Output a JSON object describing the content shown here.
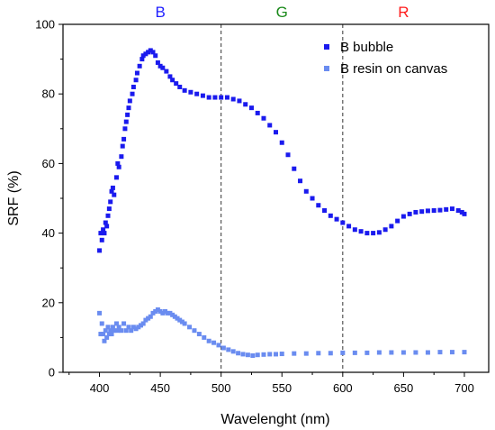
{
  "chart_data": {
    "type": "scatter",
    "xlabel": "Wavelenght (nm)",
    "ylabel": "SRF (%)",
    "xlim": [
      370,
      720
    ],
    "ylim": [
      0,
      100
    ],
    "xticks": [
      400,
      450,
      500,
      550,
      600,
      650,
      700
    ],
    "yticks": [
      0,
      20,
      40,
      60,
      80,
      100
    ],
    "grid": false,
    "legend": "top-right",
    "vlines": [
      500,
      600
    ],
    "bands": [
      {
        "label": "B",
        "x": 450,
        "color": "#1f1fff"
      },
      {
        "label": "G",
        "x": 550,
        "color": "#1a8a1a"
      },
      {
        "label": "R",
        "x": 650,
        "color": "#ff1a1a"
      }
    ],
    "series": [
      {
        "name": "B bubble",
        "color": "#1a1aee",
        "points": [
          [
            400,
            35
          ],
          [
            401,
            40
          ],
          [
            402,
            38
          ],
          [
            403,
            41
          ],
          [
            404,
            40
          ],
          [
            405,
            43
          ],
          [
            406,
            42
          ],
          [
            407,
            45
          ],
          [
            408,
            47
          ],
          [
            409,
            49
          ],
          [
            410,
            52
          ],
          [
            411,
            53
          ],
          [
            412,
            51
          ],
          [
            414,
            56
          ],
          [
            415,
            60
          ],
          [
            416,
            59
          ],
          [
            418,
            62
          ],
          [
            419,
            65
          ],
          [
            420,
            67
          ],
          [
            421,
            70
          ],
          [
            422,
            72
          ],
          [
            423,
            74
          ],
          [
            424,
            76
          ],
          [
            425,
            78
          ],
          [
            427,
            80
          ],
          [
            428,
            82
          ],
          [
            430,
            84
          ],
          [
            431,
            86
          ],
          [
            433,
            88
          ],
          [
            435,
            90
          ],
          [
            436,
            91
          ],
          [
            438,
            91.5
          ],
          [
            440,
            92
          ],
          [
            442,
            92.5
          ],
          [
            444,
            92
          ],
          [
            446,
            91
          ],
          [
            448,
            89
          ],
          [
            450,
            88
          ],
          [
            452,
            87.5
          ],
          [
            455,
            86.5
          ],
          [
            458,
            85
          ],
          [
            460,
            84
          ],
          [
            463,
            83
          ],
          [
            466,
            82
          ],
          [
            470,
            81
          ],
          [
            475,
            80.5
          ],
          [
            480,
            80
          ],
          [
            485,
            79.5
          ],
          [
            490,
            79
          ],
          [
            495,
            79
          ],
          [
            500,
            79
          ],
          [
            505,
            79
          ],
          [
            510,
            78.5
          ],
          [
            515,
            78
          ],
          [
            520,
            77
          ],
          [
            525,
            76
          ],
          [
            530,
            74.5
          ],
          [
            535,
            73
          ],
          [
            540,
            71
          ],
          [
            545,
            69
          ],
          [
            550,
            66
          ],
          [
            555,
            62.5
          ],
          [
            560,
            58.5
          ],
          [
            565,
            55
          ],
          [
            570,
            52
          ],
          [
            575,
            50
          ],
          [
            580,
            48
          ],
          [
            585,
            46.5
          ],
          [
            590,
            45
          ],
          [
            595,
            44
          ],
          [
            600,
            43
          ],
          [
            605,
            42
          ],
          [
            610,
            41
          ],
          [
            615,
            40.5
          ],
          [
            620,
            40
          ],
          [
            625,
            40
          ],
          [
            630,
            40.2
          ],
          [
            635,
            41
          ],
          [
            640,
            42
          ],
          [
            645,
            43.5
          ],
          [
            650,
            44.8
          ],
          [
            655,
            45.5
          ],
          [
            660,
            46
          ],
          [
            665,
            46.2
          ],
          [
            670,
            46.4
          ],
          [
            675,
            46.5
          ],
          [
            680,
            46.6
          ],
          [
            685,
            46.8
          ],
          [
            690,
            47
          ],
          [
            695,
            46.5
          ],
          [
            698,
            46
          ],
          [
            700,
            45.5
          ]
        ]
      },
      {
        "name": "B resin on canvas",
        "color": "#6a8cf0",
        "points": [
          [
            400,
            17
          ],
          [
            401,
            11
          ],
          [
            402,
            14
          ],
          [
            403,
            11
          ],
          [
            404,
            9
          ],
          [
            405,
            12
          ],
          [
            406,
            10
          ],
          [
            407,
            13
          ],
          [
            408,
            11
          ],
          [
            409,
            12
          ],
          [
            410,
            11
          ],
          [
            411,
            13
          ],
          [
            412,
            12
          ],
          [
            414,
            14
          ],
          [
            415,
            12
          ],
          [
            416,
            13
          ],
          [
            418,
            12
          ],
          [
            420,
            14
          ],
          [
            422,
            12
          ],
          [
            424,
            13
          ],
          [
            426,
            12
          ],
          [
            428,
            13
          ],
          [
            430,
            12.5
          ],
          [
            432,
            13
          ],
          [
            434,
            13.5
          ],
          [
            436,
            14
          ],
          [
            438,
            15
          ],
          [
            440,
            15.5
          ],
          [
            442,
            16
          ],
          [
            444,
            17
          ],
          [
            446,
            17.5
          ],
          [
            448,
            18
          ],
          [
            450,
            17.5
          ],
          [
            452,
            17
          ],
          [
            454,
            17.5
          ],
          [
            456,
            17
          ],
          [
            458,
            17
          ],
          [
            460,
            16.5
          ],
          [
            462,
            16
          ],
          [
            464,
            15.5
          ],
          [
            466,
            15
          ],
          [
            468,
            14.5
          ],
          [
            470,
            14
          ],
          [
            474,
            13
          ],
          [
            478,
            12
          ],
          [
            482,
            11
          ],
          [
            486,
            10
          ],
          [
            490,
            9
          ],
          [
            494,
            8.5
          ],
          [
            498,
            7.8
          ],
          [
            502,
            7
          ],
          [
            506,
            6.5
          ],
          [
            510,
            6
          ],
          [
            514,
            5.5
          ],
          [
            518,
            5.2
          ],
          [
            522,
            5
          ],
          [
            526,
            4.8
          ],
          [
            530,
            5
          ],
          [
            535,
            5.1
          ],
          [
            540,
            5.2
          ],
          [
            545,
            5.2
          ],
          [
            550,
            5.3
          ],
          [
            560,
            5.4
          ],
          [
            570,
            5.4
          ],
          [
            580,
            5.5
          ],
          [
            590,
            5.5
          ],
          [
            600,
            5.6
          ],
          [
            610,
            5.6
          ],
          [
            620,
            5.6
          ],
          [
            630,
            5.7
          ],
          [
            640,
            5.7
          ],
          [
            650,
            5.7
          ],
          [
            660,
            5.7
          ],
          [
            670,
            5.7
          ],
          [
            680,
            5.8
          ],
          [
            690,
            5.8
          ],
          [
            700,
            5.8
          ]
        ]
      }
    ]
  }
}
